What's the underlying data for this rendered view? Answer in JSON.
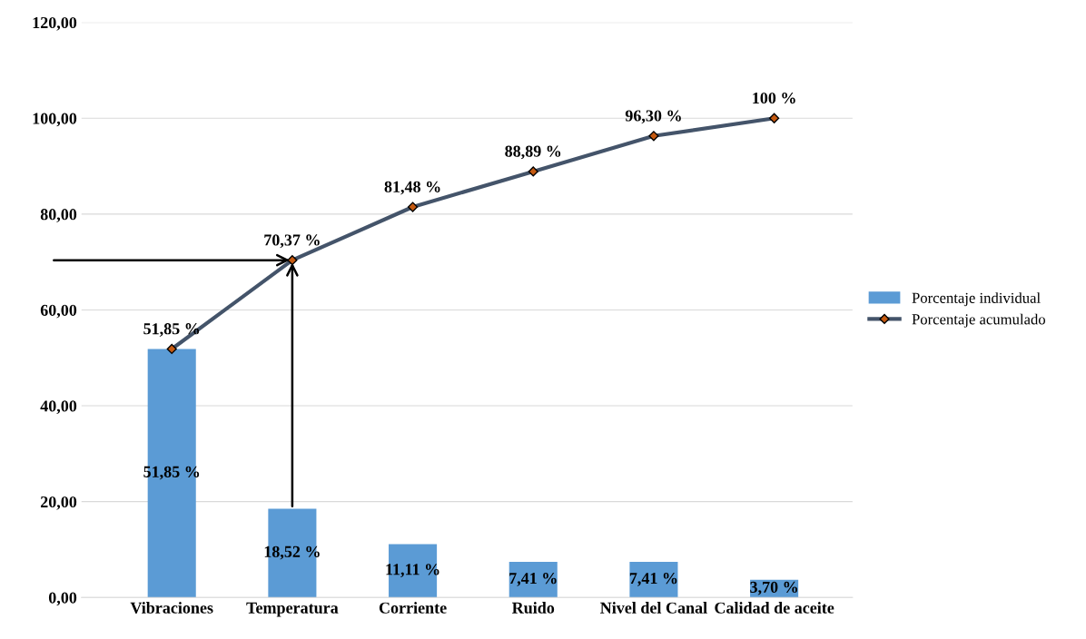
{
  "chart_data": {
    "type": "bar",
    "categories": [
      "Vibraciones",
      "Temperatura",
      "Corriente",
      "Ruido",
      "Nivel del Canal",
      "Calidad de aceite"
    ],
    "series": [
      {
        "name": "Porcentaje individual",
        "color": "#5b9bd5",
        "values": [
          51.85,
          18.52,
          11.11,
          7.41,
          7.41,
          3.7
        ],
        "value_labels": [
          "51,85 %",
          "18,52 %",
          "11,11 %",
          "7,41 %",
          "7,41 %",
          "3,70 %"
        ]
      },
      {
        "name": "Porcentaje acumulado",
        "type": "line",
        "color": "#44546a",
        "marker": "diamond",
        "values": [
          51.85,
          70.37,
          81.48,
          88.89,
          96.3,
          100
        ],
        "value_labels": [
          "51,85 %",
          "70,37 %",
          "81,48 %",
          "88,89 %",
          "96,30 %",
          "100 %"
        ]
      }
    ],
    "ylim": [
      0,
      120
    ],
    "yticks": [
      {
        "value": 0,
        "label": "0,00"
      },
      {
        "value": 20,
        "label": "20,00"
      },
      {
        "value": 40,
        "label": "40,00"
      },
      {
        "value": 60,
        "label": "60,00"
      },
      {
        "value": 80,
        "label": "80,00"
      },
      {
        "value": 100,
        "label": "100,00"
      },
      {
        "value": 120,
        "label": "120,00"
      }
    ],
    "grid": "y",
    "legend": "right"
  }
}
